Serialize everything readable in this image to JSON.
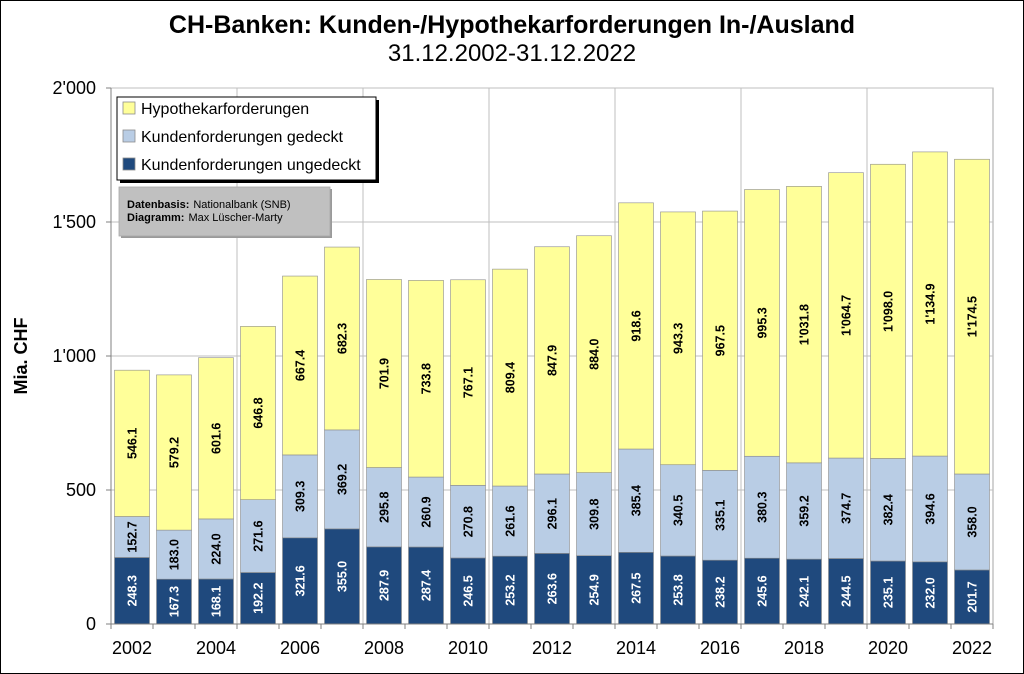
{
  "chart_data": {
    "type": "bar",
    "stacked": true,
    "title": "CH-Banken: Kunden-/Hypothekarforderungen In-/Ausland",
    "subtitle": "31.12.2002-31.12.2022",
    "xlabel": "",
    "ylabel": "Mia. CHF",
    "ylim": [
      0,
      2000
    ],
    "ytick_values": [
      0,
      500,
      1000,
      1500,
      2000
    ],
    "ytick_labels": [
      "0",
      "500",
      "1'000",
      "1'500",
      "2'000"
    ],
    "categories": [
      2002,
      2003,
      2004,
      2005,
      2006,
      2007,
      2008,
      2009,
      2010,
      2011,
      2012,
      2013,
      2014,
      2015,
      2016,
      2017,
      2018,
      2019,
      2020,
      2021,
      2022
    ],
    "xtick_labels": [
      "2002",
      "2004",
      "2006",
      "2008",
      "2010",
      "2012",
      "2014",
      "2016",
      "2018",
      "2020",
      "2022"
    ],
    "grid": true,
    "legend_position": "top-left",
    "series": [
      {
        "name": "Kundenforderungen ungedeckt",
        "color": "#1f497d",
        "label_color": "#ffffff",
        "values": [
          248.3,
          167.3,
          168.1,
          192.2,
          321.6,
          355.0,
          287.9,
          287.4,
          246.5,
          253.2,
          263.6,
          254.9,
          267.5,
          253.8,
          238.2,
          245.6,
          242.1,
          244.5,
          235.1,
          232.0,
          201.7
        ],
        "labels": [
          "248.3",
          "167.3",
          "168.1",
          "192.2",
          "321.6",
          "355.0",
          "287.9",
          "287.4",
          "246.5",
          "253.2",
          "263.6",
          "254.9",
          "267.5",
          "253.8",
          "238.2",
          "245.6",
          "242.1",
          "244.5",
          "235.1",
          "232.0",
          "201.7"
        ]
      },
      {
        "name": "Kundenforderungen gedeckt",
        "color": "#b9cde5",
        "label_color": "#000000",
        "values": [
          152.7,
          183.0,
          224.0,
          271.6,
          309.3,
          369.2,
          295.8,
          260.9,
          270.8,
          261.6,
          296.1,
          309.8,
          385.4,
          340.5,
          335.1,
          380.3,
          359.2,
          374.7,
          382.4,
          394.6,
          358.0
        ],
        "labels": [
          "152.7",
          "183.0",
          "224.0",
          "271.6",
          "309.3",
          "369.2",
          "295.8",
          "260.9",
          "270.8",
          "261.6",
          "296.1",
          "309.8",
          "385.4",
          "340.5",
          "335.1",
          "380.3",
          "359.2",
          "374.7",
          "382.4",
          "394.6",
          "358.0"
        ]
      },
      {
        "name": "Hypothekarforderungen",
        "color": "#ffff99",
        "label_color": "#000000",
        "values": [
          546.1,
          579.2,
          601.6,
          646.8,
          667.4,
          682.3,
          701.9,
          733.8,
          767.1,
          809.4,
          847.9,
          884.0,
          918.6,
          943.3,
          967.5,
          995.3,
          1031.8,
          1064.7,
          1098.0,
          1134.9,
          1174.5
        ],
        "labels": [
          "546.1",
          "579.2",
          "601.6",
          "646.8",
          "667.4",
          "682.3",
          "701.9",
          "733.8",
          "767.1",
          "809.4",
          "847.9",
          "884.0",
          "918.6",
          "943.3",
          "967.5",
          "995.3",
          "1'031.8",
          "1'064.7",
          "1'098.0",
          "1'134.9",
          "1'174.5"
        ]
      }
    ]
  },
  "info": {
    "source_label": "Datenbasis:",
    "source_value": "Nationalbank (SNB)",
    "author_label": "Diagramm:",
    "author_value": "Max Lüscher-Marty"
  }
}
